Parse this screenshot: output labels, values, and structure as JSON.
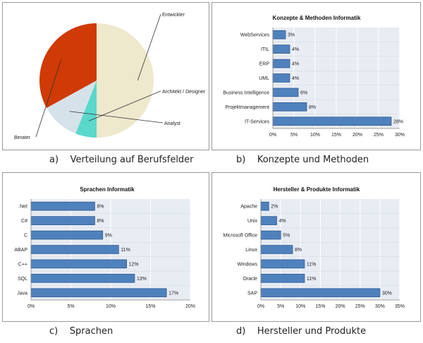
{
  "captions": {
    "a": "a)    Verteilung auf Berufsfelder",
    "b": "b)    Konzepte und Methoden",
    "c": "c)    Sprachen",
    "d": "d)    Hersteller und Produkte"
  },
  "colors": {
    "bar": "#4f81bd",
    "bar_edge": "#2f5a8f",
    "plot_bg": "#e8ecf3",
    "grid": "#ffffff"
  },
  "chart_data": [
    {
      "id": "pie",
      "type": "pie",
      "title": "",
      "slices": [
        {
          "label": "Entwickler",
          "value": 50,
          "color": "#eee8cd"
        },
        {
          "label": "Architekt / Designer",
          "value": 6,
          "color": "#5ad8cc"
        },
        {
          "label": "Analyst",
          "value": 11,
          "color": "#d6e2ea"
        },
        {
          "label": "Berater",
          "value": 33,
          "color": "#cf3a06"
        }
      ]
    },
    {
      "id": "konzepte",
      "type": "bar",
      "orientation": "horizontal",
      "title": "Konzepte & Methoden Informatik",
      "categories": [
        "WebServices",
        "ITIL",
        "ERP",
        "UML",
        "Business Intelligence",
        "Projektmanagement",
        "IT-Services"
      ],
      "values": [
        3,
        4,
        4,
        4,
        6,
        8,
        28
      ],
      "value_labels": [
        "3%",
        "4%",
        "4%",
        "4%",
        "6%",
        "8%",
        "28%"
      ],
      "xlim": [
        0,
        30
      ],
      "ticks": [
        "0%",
        "5%",
        "10%",
        "15%",
        "20%",
        "25%",
        "30%"
      ]
    },
    {
      "id": "sprachen",
      "type": "bar",
      "orientation": "horizontal",
      "title": "Sprachen Informatik",
      "categories": [
        ".Net",
        "C#",
        "C",
        "ABAP",
        "C++",
        "SQL",
        "Java"
      ],
      "values": [
        8,
        8,
        9,
        11,
        12,
        13,
        17
      ],
      "value_labels": [
        "8%",
        "8%",
        "9%",
        "11%",
        "12%",
        "13%",
        "17%"
      ],
      "xlim": [
        0,
        20
      ],
      "ticks": [
        "0%",
        "5%",
        "10%",
        "15%",
        "20%"
      ]
    },
    {
      "id": "hersteller",
      "type": "bar",
      "orientation": "horizontal",
      "title": "Hersteller & Produkte Informatik",
      "categories": [
        "Apache",
        "Unix",
        "Microsoft Office",
        "Linux",
        "Windows",
        "Oracle",
        "SAP"
      ],
      "values": [
        2,
        4,
        5,
        8,
        11,
        11,
        30
      ],
      "value_labels": [
        "2%",
        "4%",
        "5%",
        "8%",
        "11%",
        "11%",
        "30%"
      ],
      "xlim": [
        0,
        35
      ],
      "ticks": [
        "0%",
        "5%",
        "10%",
        "15%",
        "20%",
        "25%",
        "30%",
        "35%"
      ]
    }
  ]
}
